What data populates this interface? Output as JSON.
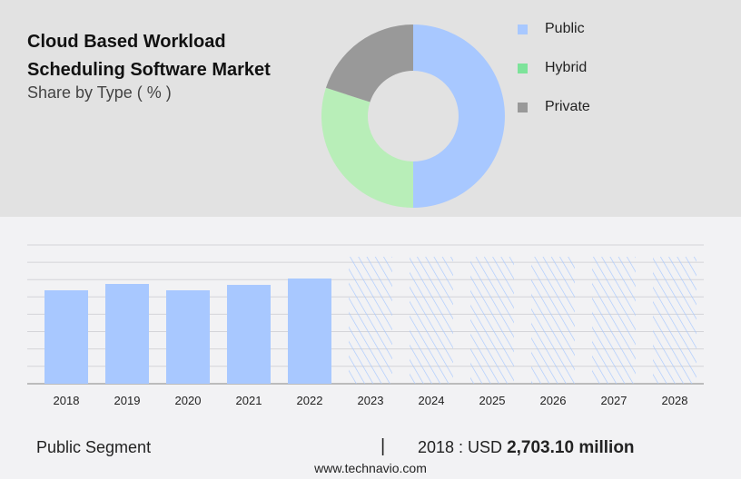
{
  "title_line1": "Cloud Based Workload",
  "title_line2": "Scheduling Software Market",
  "subtitle": "Share by Type ( % )",
  "chart_data": [
    {
      "type": "pie",
      "variant": "donut",
      "categories": [
        "Public",
        "Hybrid",
        "Private"
      ],
      "values": [
        50,
        30,
        20
      ],
      "colors": [
        "#a8c8ff",
        "#b8eeb8",
        "#999999"
      ],
      "legend_colors": [
        "#a8c8ff",
        "#7de39a",
        "#999999"
      ],
      "legend": "right"
    },
    {
      "type": "bar",
      "categories": [
        "2018",
        "2019",
        "2020",
        "2021",
        "2022",
        "2023",
        "2024",
        "2025",
        "2026",
        "2027",
        "2028"
      ],
      "values": [
        2703.1,
        2887,
        2703,
        2860,
        3044,
        null,
        null,
        null,
        null,
        null,
        null
      ],
      "forecast": [
        false,
        false,
        false,
        false,
        false,
        true,
        true,
        true,
        true,
        true,
        true
      ],
      "color": "#a8c8ff",
      "grid": true,
      "y_tick_labels": false
    }
  ],
  "footer": {
    "segment": "Public Segment",
    "separator": "|",
    "year_label": "2018 : USD",
    "value": "2,703.10 million",
    "source": "www.technavio.com"
  }
}
